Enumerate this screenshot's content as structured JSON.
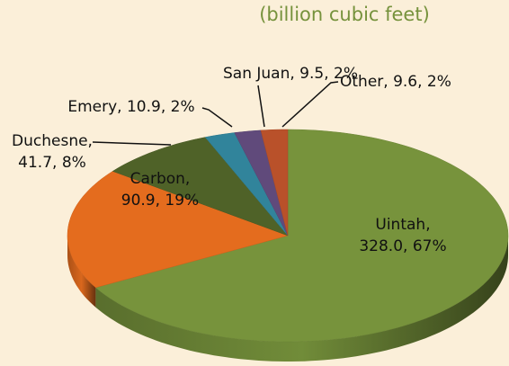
{
  "chart_data": {
    "type": "pie",
    "subtitle": "(billion cubic feet)",
    "values": [
      328.0,
      90.9,
      41.7,
      10.9,
      9.5,
      9.6
    ],
    "value_labels": [
      [
        "Uintah,",
        "328.0, 67%"
      ],
      [
        "Carbon,",
        "90.9, 19%"
      ],
      [
        "Duchesne,",
        "41.7, 8%"
      ],
      [
        "Emery, 10.9, 2%"
      ],
      [
        "San Juan, 9.5, 2%"
      ],
      [
        "Other, 9.6, 2%"
      ]
    ],
    "colors": [
      "#77933c",
      "#e46c1e",
      "#4f6228",
      "#31849b",
      "#604a7b",
      "#b9512a"
    ]
  }
}
